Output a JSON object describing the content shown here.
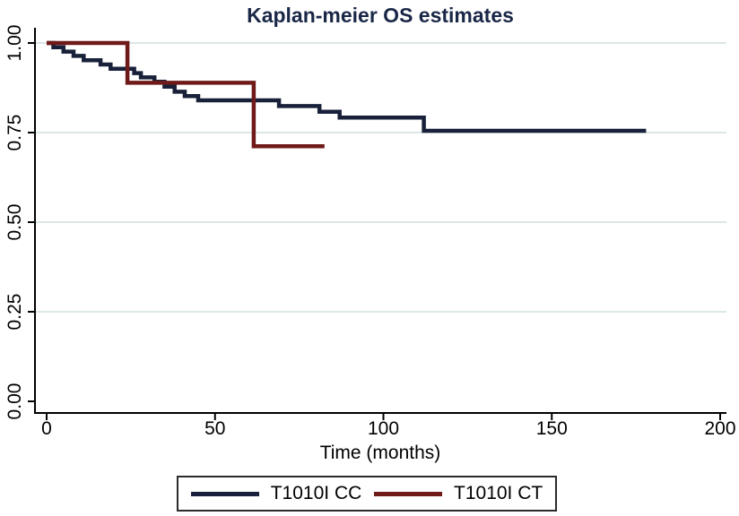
{
  "title": "Kaplan-meier OS estimates",
  "chart_data": {
    "type": "line",
    "subtype": "kaplan-meier-step",
    "title": "Kaplan-meier OS estimates",
    "xlabel": "Time (months)",
    "ylabel": "",
    "xlim": [
      0,
      200
    ],
    "ylim": [
      0.0,
      1.0
    ],
    "x_ticks": [
      0,
      50,
      100,
      150,
      200
    ],
    "x_tick_labels": [
      "0",
      "50",
      "100",
      "150",
      "200"
    ],
    "y_ticks": [
      0.0,
      0.25,
      0.5,
      0.75,
      1.0
    ],
    "y_tick_labels": [
      "0.00",
      "0.25",
      "0.50",
      "0.75",
      "1.00"
    ],
    "grid": "horizontal-gridlines-at-y-ticks-except-zero",
    "legend_position": "bottom-outside",
    "series": [
      {
        "name": "T1010I CC",
        "color": "#18203a",
        "points": [
          [
            0,
            1.0
          ],
          [
            2,
            0.988
          ],
          [
            5,
            0.976
          ],
          [
            8,
            0.964
          ],
          [
            11,
            0.952
          ],
          [
            16,
            0.94
          ],
          [
            19,
            0.928
          ],
          [
            26,
            0.916
          ],
          [
            28,
            0.904
          ],
          [
            32,
            0.892
          ],
          [
            35,
            0.878
          ],
          [
            38,
            0.864
          ],
          [
            41,
            0.852
          ],
          [
            45,
            0.84
          ],
          [
            69,
            0.824
          ],
          [
            81,
            0.808
          ],
          [
            87,
            0.792
          ],
          [
            112,
            0.755
          ],
          [
            178,
            0.755
          ]
        ]
      },
      {
        "name": "T1010I CT",
        "color": "#6f1a19",
        "points": [
          [
            0,
            1.0
          ],
          [
            24,
            0.889
          ],
          [
            61.5,
            0.712
          ],
          [
            82.5,
            0.712
          ]
        ]
      }
    ],
    "legend": {
      "items": [
        {
          "label": "T1010I CC",
          "color": "#18203a"
        },
        {
          "label": "T1010I CT",
          "color": "#6f1a19"
        }
      ]
    }
  },
  "colors": {
    "title": "#1a2747",
    "axis": "#000000",
    "gridline": "#dce7e8",
    "background": "#ffffff",
    "legend_border": "#2b2b2b"
  }
}
